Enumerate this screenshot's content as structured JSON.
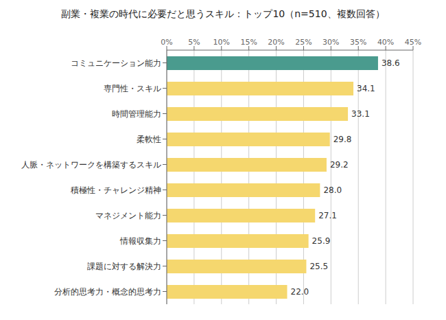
{
  "chart_data": {
    "type": "bar",
    "orientation": "horizontal",
    "title": "副業・複業の時代に必要だと思うスキル：トップ10（n=510、複数回答）",
    "categories": [
      "コミュニケーション能力",
      "専門性・スキル",
      "時間管理能力",
      "柔軟性",
      "人脈・ネットワークを構築するスキル",
      "積極性・チャレンジ精神",
      "マネジメント能力",
      "情報収集力",
      "課題に対する解決力",
      "分析的思考力・概念的思考力"
    ],
    "values": [
      38.6,
      34.1,
      33.1,
      29.8,
      29.2,
      28.0,
      27.1,
      25.9,
      25.5,
      22.0
    ],
    "value_labels": [
      "38.6",
      "34.1",
      "33.1",
      "29.8",
      "29.2",
      "28.0",
      "27.1",
      "25.9",
      "25.5",
      "22.0"
    ],
    "data_labels": true,
    "colors": [
      "#4a9b8e",
      "#f5d76e",
      "#f5d76e",
      "#f5d76e",
      "#f5d76e",
      "#f5d76e",
      "#f5d76e",
      "#f5d76e",
      "#f5d76e",
      "#f5d76e"
    ],
    "xlim": [
      0,
      45
    ],
    "xticks": [
      {
        "value": 0,
        "label": "0%"
      },
      {
        "value": 5,
        "label": "5%"
      },
      {
        "value": 10,
        "label": "10%"
      },
      {
        "value": 15,
        "label": "15%"
      },
      {
        "value": 20,
        "label": "20%"
      },
      {
        "value": 25,
        "label": "25%"
      },
      {
        "value": 30,
        "label": "30%"
      },
      {
        "value": 35,
        "label": "35%"
      },
      {
        "value": 40,
        "label": "40%"
      },
      {
        "value": 45,
        "label": "45%"
      }
    ],
    "grid": true
  }
}
